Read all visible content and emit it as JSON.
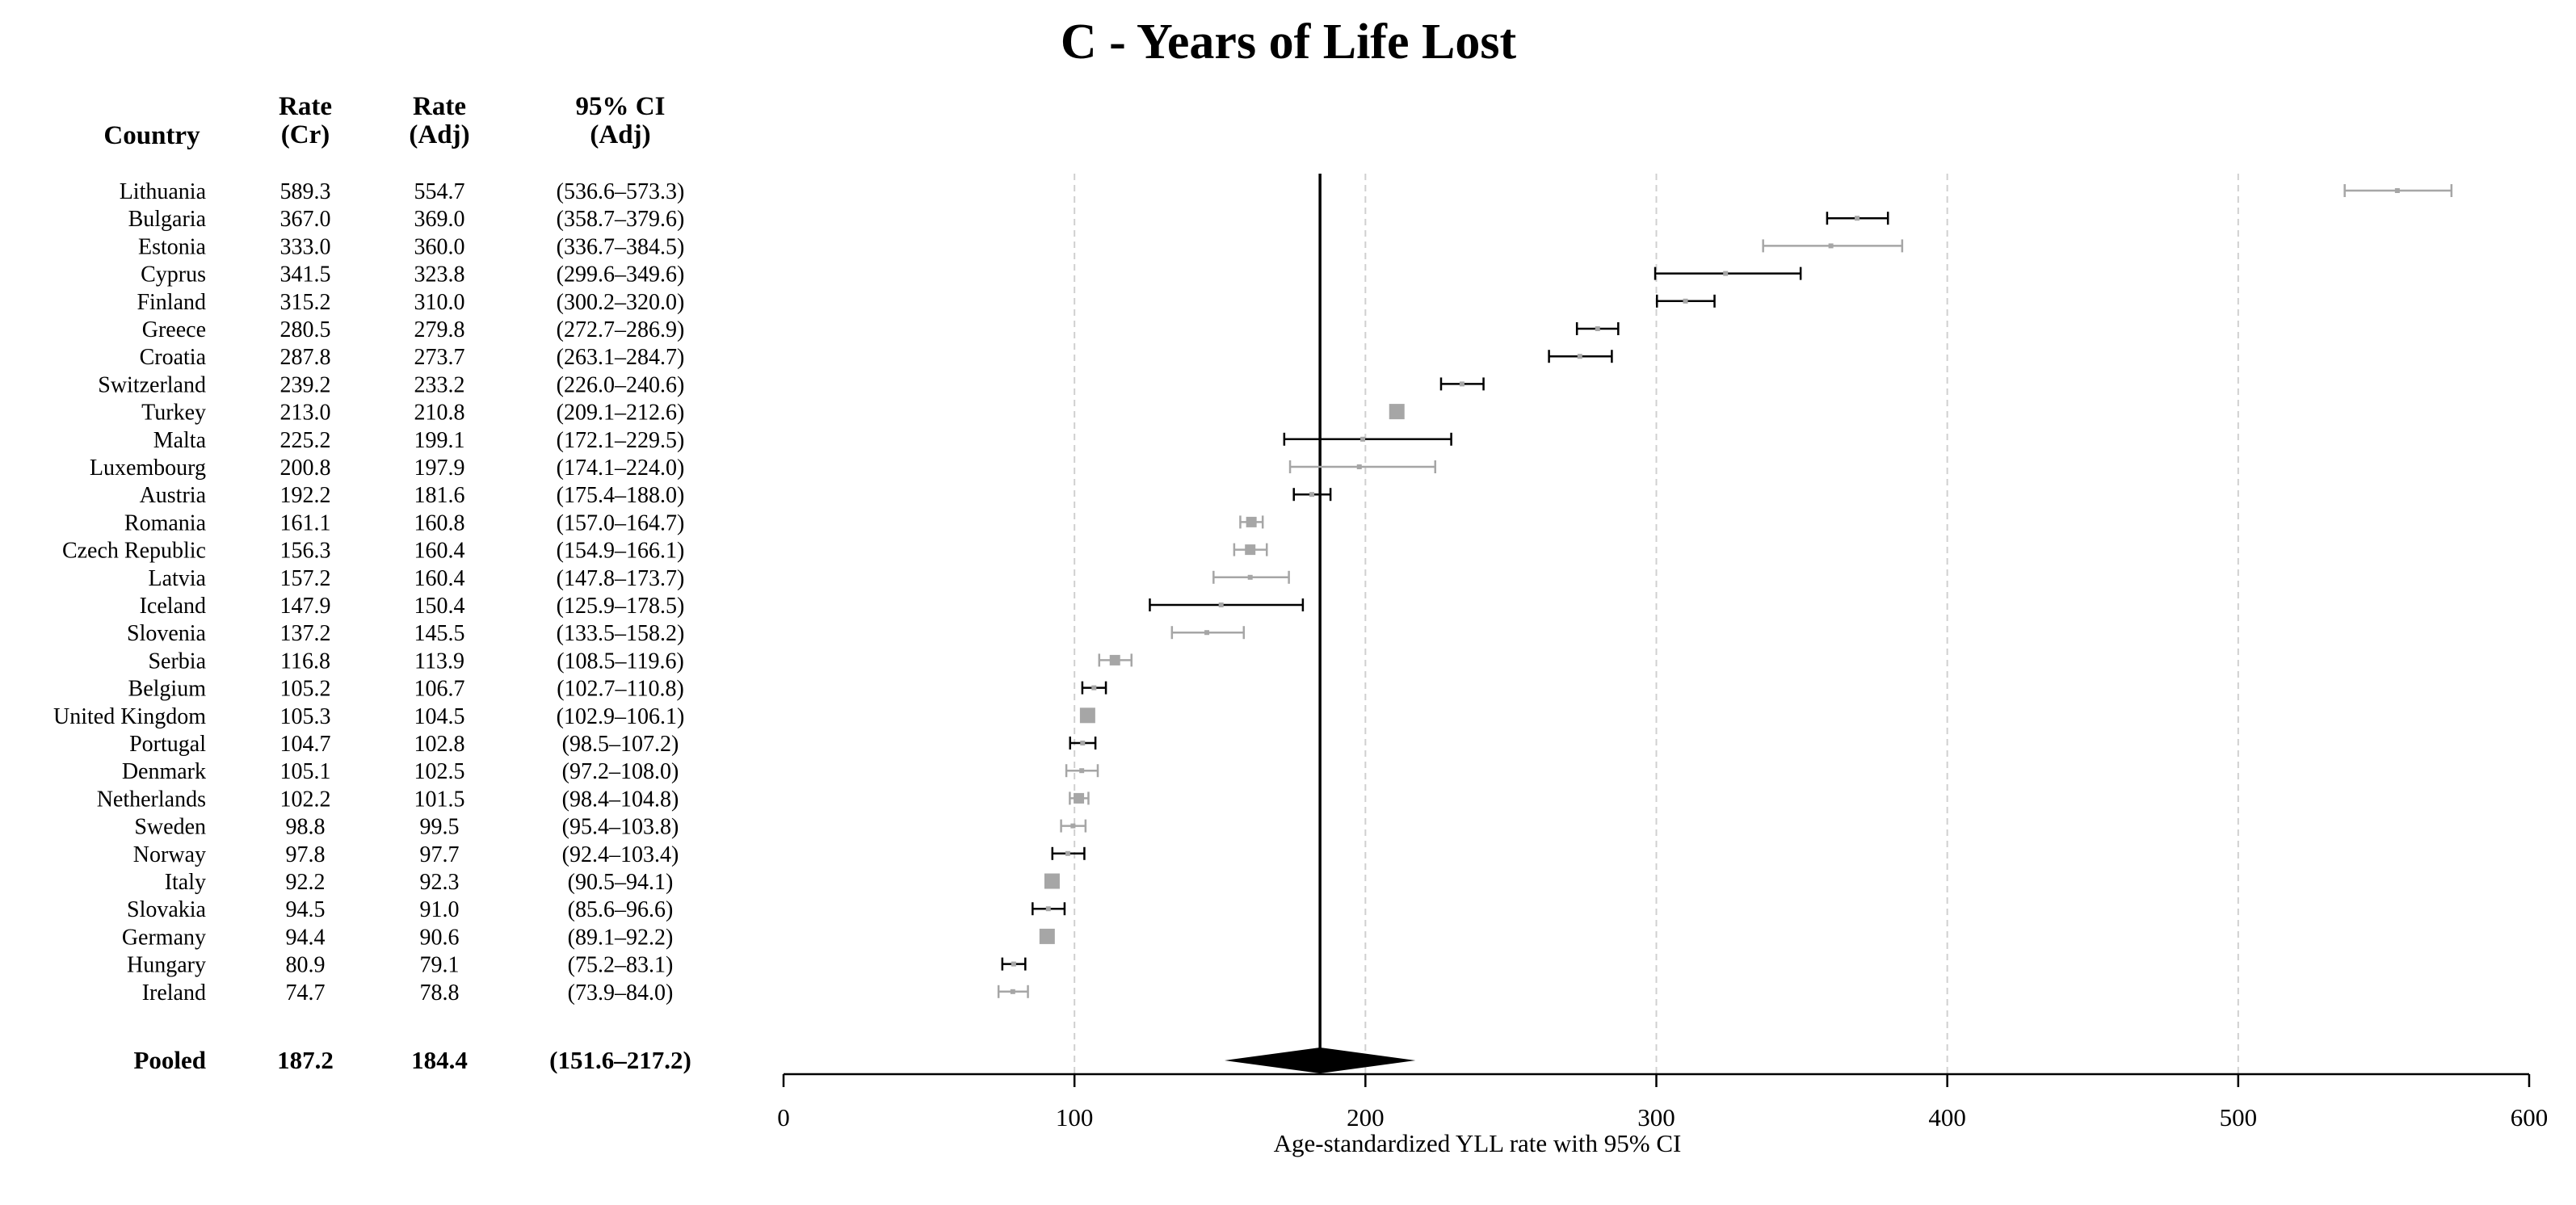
{
  "chart_data": {
    "type": "forest",
    "title": "C - Years of Life Lost",
    "xlabel": "Age-standardized YLL rate with 95% CI",
    "xlim": [
      0,
      600
    ],
    "xticks": [
      0,
      100,
      200,
      300,
      400,
      500,
      600
    ],
    "reference_line": 184.4,
    "headers": {
      "country": "Country",
      "rate_cr_line1": "Rate",
      "rate_cr_line2": "(Cr)",
      "rate_adj_line1": "Rate",
      "rate_adj_line2": "(Adj)",
      "ci_line1": "95% CI",
      "ci_line2": "(Adj)"
    },
    "rows": [
      {
        "country": "Lithuania",
        "rate_cr": "589.3",
        "rate_adj": "554.7",
        "ci": "(536.6–573.3)",
        "est": 554.7,
        "lo": 536.6,
        "hi": 573.3,
        "weight": "small",
        "shade": "gray"
      },
      {
        "country": "Bulgaria",
        "rate_cr": "367.0",
        "rate_adj": "369.0",
        "ci": "(358.7–379.6)",
        "est": 369.0,
        "lo": 358.7,
        "hi": 379.6,
        "weight": "small",
        "shade": "black"
      },
      {
        "country": "Estonia",
        "rate_cr": "333.0",
        "rate_adj": "360.0",
        "ci": "(336.7–384.5)",
        "est": 360.0,
        "lo": 336.7,
        "hi": 384.5,
        "weight": "small",
        "shade": "gray"
      },
      {
        "country": "Cyprus",
        "rate_cr": "341.5",
        "rate_adj": "323.8",
        "ci": "(299.6–349.6)",
        "est": 323.8,
        "lo": 299.6,
        "hi": 349.6,
        "weight": "small",
        "shade": "black"
      },
      {
        "country": "Finland",
        "rate_cr": "315.2",
        "rate_adj": "310.0",
        "ci": "(300.2–320.0)",
        "est": 310.0,
        "lo": 300.2,
        "hi": 320.0,
        "weight": "small",
        "shade": "black"
      },
      {
        "country": "Greece",
        "rate_cr": "280.5",
        "rate_adj": "279.8",
        "ci": "(272.7–286.9)",
        "est": 279.8,
        "lo": 272.7,
        "hi": 286.9,
        "weight": "small",
        "shade": "black"
      },
      {
        "country": "Croatia",
        "rate_cr": "287.8",
        "rate_adj": "273.7",
        "ci": "(263.1–284.7)",
        "est": 273.7,
        "lo": 263.1,
        "hi": 284.7,
        "weight": "small",
        "shade": "black"
      },
      {
        "country": "Switzerland",
        "rate_cr": "239.2",
        "rate_adj": "233.2",
        "ci": "(226.0–240.6)",
        "est": 233.2,
        "lo": 226.0,
        "hi": 240.6,
        "weight": "small",
        "shade": "black"
      },
      {
        "country": "Turkey",
        "rate_cr": "213.0",
        "rate_adj": "210.8",
        "ci": "(209.1–212.6)",
        "est": 210.8,
        "lo": 209.1,
        "hi": 212.6,
        "weight": "large",
        "shade": "gray"
      },
      {
        "country": "Malta",
        "rate_cr": "225.2",
        "rate_adj": "199.1",
        "ci": "(172.1–229.5)",
        "est": 199.1,
        "lo": 172.1,
        "hi": 229.5,
        "weight": "small",
        "shade": "black"
      },
      {
        "country": "Luxembourg",
        "rate_cr": "200.8",
        "rate_adj": "197.9",
        "ci": "(174.1–224.0)",
        "est": 197.9,
        "lo": 174.1,
        "hi": 224.0,
        "weight": "small",
        "shade": "gray"
      },
      {
        "country": "Austria",
        "rate_cr": "192.2",
        "rate_adj": "181.6",
        "ci": "(175.4–188.0)",
        "est": 181.6,
        "lo": 175.4,
        "hi": 188.0,
        "weight": "small",
        "shade": "black"
      },
      {
        "country": "Romania",
        "rate_cr": "161.1",
        "rate_adj": "160.8",
        "ci": "(157.0–164.7)",
        "est": 160.8,
        "lo": 157.0,
        "hi": 164.7,
        "weight": "medium",
        "shade": "gray"
      },
      {
        "country": "Czech Republic",
        "rate_cr": "156.3",
        "rate_adj": "160.4",
        "ci": "(154.9–166.1)",
        "est": 160.4,
        "lo": 154.9,
        "hi": 166.1,
        "weight": "medium",
        "shade": "gray"
      },
      {
        "country": "Latvia",
        "rate_cr": "157.2",
        "rate_adj": "160.4",
        "ci": "(147.8–173.7)",
        "est": 160.4,
        "lo": 147.8,
        "hi": 173.7,
        "weight": "small",
        "shade": "gray"
      },
      {
        "country": "Iceland",
        "rate_cr": "147.9",
        "rate_adj": "150.4",
        "ci": "(125.9–178.5)",
        "est": 150.4,
        "lo": 125.9,
        "hi": 178.5,
        "weight": "small",
        "shade": "black"
      },
      {
        "country": "Slovenia",
        "rate_cr": "137.2",
        "rate_adj": "145.5",
        "ci": "(133.5–158.2)",
        "est": 145.5,
        "lo": 133.5,
        "hi": 158.2,
        "weight": "small",
        "shade": "gray"
      },
      {
        "country": "Serbia",
        "rate_cr": "116.8",
        "rate_adj": "113.9",
        "ci": "(108.5–119.6)",
        "est": 113.9,
        "lo": 108.5,
        "hi": 119.6,
        "weight": "medium",
        "shade": "gray"
      },
      {
        "country": "Belgium",
        "rate_cr": "105.2",
        "rate_adj": "106.7",
        "ci": "(102.7–110.8)",
        "est": 106.7,
        "lo": 102.7,
        "hi": 110.8,
        "weight": "small",
        "shade": "black"
      },
      {
        "country": "United Kingdom",
        "rate_cr": "105.3",
        "rate_adj": "104.5",
        "ci": "(102.9–106.1)",
        "est": 104.5,
        "lo": 102.9,
        "hi": 106.1,
        "weight": "large",
        "shade": "gray"
      },
      {
        "country": "Portugal",
        "rate_cr": "104.7",
        "rate_adj": "102.8",
        "ci": "(98.5–107.2)",
        "est": 102.8,
        "lo": 98.5,
        "hi": 107.2,
        "weight": "small",
        "shade": "black"
      },
      {
        "country": "Denmark",
        "rate_cr": "105.1",
        "rate_adj": "102.5",
        "ci": "(97.2–108.0)",
        "est": 102.5,
        "lo": 97.2,
        "hi": 108.0,
        "weight": "small",
        "shade": "gray"
      },
      {
        "country": "Netherlands",
        "rate_cr": "102.2",
        "rate_adj": "101.5",
        "ci": "(98.4–104.8)",
        "est": 101.5,
        "lo": 98.4,
        "hi": 104.8,
        "weight": "medium",
        "shade": "gray"
      },
      {
        "country": "Sweden",
        "rate_cr": "98.8",
        "rate_adj": "99.5",
        "ci": "(95.4–103.8)",
        "est": 99.5,
        "lo": 95.4,
        "hi": 103.8,
        "weight": "small",
        "shade": "gray"
      },
      {
        "country": "Norway",
        "rate_cr": "97.8",
        "rate_adj": "97.7",
        "ci": "(92.4–103.4)",
        "est": 97.7,
        "lo": 92.4,
        "hi": 103.4,
        "weight": "small",
        "shade": "black"
      },
      {
        "country": "Italy",
        "rate_cr": "92.2",
        "rate_adj": "92.3",
        "ci": "(90.5–94.1)",
        "est": 92.3,
        "lo": 90.5,
        "hi": 94.1,
        "weight": "large",
        "shade": "gray"
      },
      {
        "country": "Slovakia",
        "rate_cr": "94.5",
        "rate_adj": "91.0",
        "ci": "(85.6–96.6)",
        "est": 91.0,
        "lo": 85.6,
        "hi": 96.6,
        "weight": "small",
        "shade": "black"
      },
      {
        "country": "Germany",
        "rate_cr": "94.4",
        "rate_adj": "90.6",
        "ci": "(89.1–92.2)",
        "est": 90.6,
        "lo": 89.1,
        "hi": 92.2,
        "weight": "large",
        "shade": "gray"
      },
      {
        "country": "Hungary",
        "rate_cr": "80.9",
        "rate_adj": "79.1",
        "ci": "(75.2–83.1)",
        "est": 79.1,
        "lo": 75.2,
        "hi": 83.1,
        "weight": "small",
        "shade": "black"
      },
      {
        "country": "Ireland",
        "rate_cr": "74.7",
        "rate_adj": "78.8",
        "ci": "(73.9–84.0)",
        "est": 78.8,
        "lo": 73.9,
        "hi": 84.0,
        "weight": "small",
        "shade": "gray"
      }
    ],
    "pooled": {
      "label": "Pooled",
      "rate_cr": "187.2",
      "rate_adj": "184.4",
      "ci": "(151.6–217.2)",
      "est": 184.4,
      "lo": 151.6,
      "hi": 217.2
    },
    "colors": {
      "black": "#000000",
      "gray": "#a6a6a6",
      "grid": "#d0d0d0"
    }
  }
}
